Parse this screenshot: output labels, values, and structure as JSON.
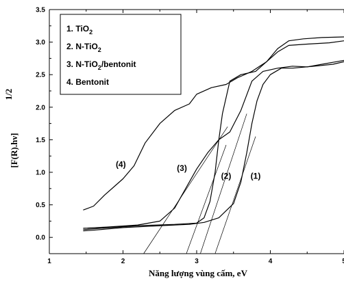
{
  "chart_data": {
    "type": "line",
    "xlabel": "Năng lượng vùng cấm, eV",
    "ylabel_main": "[F(R).hν]",
    "ylabel_exponent": "1/2",
    "xlim": [
      1,
      5
    ],
    "ylim": [
      -0.25,
      3.5
    ],
    "xticks": [
      1,
      2,
      3,
      4,
      5
    ],
    "yticks": [
      0.0,
      0.5,
      1.0,
      1.5,
      2.0,
      2.5,
      3.0,
      3.5
    ],
    "xtick_labels": [
      "1",
      "2",
      "3",
      "4",
      "5"
    ],
    "ytick_labels": [
      "0.0",
      "0.5",
      "1.0",
      "1.5",
      "2.0",
      "2.5",
      "3.0",
      "3.5"
    ],
    "legend": {
      "placement": "top-left",
      "entries": [
        {
          "num": "1.",
          "text": "TiO",
          "sub": "2",
          "rest": ""
        },
        {
          "num": "2.",
          "text": "N-TiO",
          "sub": "2",
          "rest": ""
        },
        {
          "num": "3.",
          "text": "N-TiO",
          "sub": "2",
          "rest": "/bentonit"
        },
        {
          "num": "4.",
          "text": "Bentonit",
          "sub": "",
          "rest": ""
        }
      ]
    },
    "series": [
      {
        "label": "(1)",
        "label_at": [
          3.8,
          0.9
        ],
        "points": [
          [
            1.46,
            0.1
          ],
          [
            1.6,
            0.11
          ],
          [
            2.0,
            0.15
          ],
          [
            2.5,
            0.18
          ],
          [
            2.9,
            0.2
          ],
          [
            3.1,
            0.23
          ],
          [
            3.3,
            0.3
          ],
          [
            3.5,
            0.52
          ],
          [
            3.6,
            0.85
          ],
          [
            3.68,
            1.3
          ],
          [
            3.75,
            1.75
          ],
          [
            3.82,
            2.1
          ],
          [
            3.9,
            2.35
          ],
          [
            4.0,
            2.5
          ],
          [
            4.15,
            2.6
          ],
          [
            4.3,
            2.6
          ],
          [
            4.6,
            2.63
          ],
          [
            4.85,
            2.66
          ],
          [
            5.0,
            2.7
          ]
        ]
      },
      {
        "label": "(2)",
        "label_at": [
          3.4,
          0.9
        ],
        "points": [
          [
            1.46,
            0.12
          ],
          [
            1.7,
            0.14
          ],
          [
            2.2,
            0.18
          ],
          [
            2.7,
            0.2
          ],
          [
            3.0,
            0.22
          ],
          [
            3.1,
            0.3
          ],
          [
            3.18,
            0.55
          ],
          [
            3.25,
            1.0
          ],
          [
            3.3,
            1.5
          ],
          [
            3.35,
            1.9
          ],
          [
            3.45,
            2.4
          ],
          [
            3.6,
            2.5
          ],
          [
            3.8,
            2.55
          ],
          [
            3.95,
            2.7
          ],
          [
            4.1,
            2.85
          ],
          [
            4.25,
            2.95
          ],
          [
            4.5,
            2.97
          ],
          [
            4.8,
            2.99
          ],
          [
            5.0,
            3.02
          ]
        ]
      },
      {
        "label": "(3)",
        "label_at": [
          2.8,
          1.02
        ],
        "points": [
          [
            1.46,
            0.14
          ],
          [
            1.8,
            0.16
          ],
          [
            2.2,
            0.19
          ],
          [
            2.5,
            0.25
          ],
          [
            2.7,
            0.45
          ],
          [
            2.85,
            0.75
          ],
          [
            3.0,
            1.05
          ],
          [
            3.15,
            1.3
          ],
          [
            3.3,
            1.5
          ],
          [
            3.45,
            1.62
          ],
          [
            3.6,
            1.95
          ],
          [
            3.75,
            2.4
          ],
          [
            3.9,
            2.55
          ],
          [
            4.1,
            2.6
          ],
          [
            4.3,
            2.63
          ],
          [
            4.5,
            2.62
          ],
          [
            4.7,
            2.66
          ],
          [
            4.9,
            2.7
          ],
          [
            5.0,
            2.72
          ]
        ]
      },
      {
        "label": "(4)",
        "label_at": [
          1.97,
          1.08
        ],
        "points": [
          [
            1.46,
            0.42
          ],
          [
            1.6,
            0.48
          ],
          [
            1.75,
            0.65
          ],
          [
            1.9,
            0.8
          ],
          [
            2.0,
            0.9
          ],
          [
            2.15,
            1.1
          ],
          [
            2.3,
            1.45
          ],
          [
            2.5,
            1.75
          ],
          [
            2.7,
            1.95
          ],
          [
            2.9,
            2.05
          ],
          [
            3.0,
            2.2
          ],
          [
            3.2,
            2.3
          ],
          [
            3.4,
            2.35
          ],
          [
            3.55,
            2.45
          ],
          [
            3.75,
            2.55
          ],
          [
            3.95,
            2.7
          ],
          [
            4.1,
            2.9
          ],
          [
            4.25,
            3.02
          ],
          [
            4.45,
            3.05
          ],
          [
            4.7,
            3.07
          ],
          [
            5.0,
            3.08
          ]
        ]
      }
    ],
    "tangent_lines": [
      {
        "from": [
          2.28,
          -0.25
        ],
        "to": [
          3.42,
          1.7
        ]
      },
      {
        "from": [
          2.86,
          -0.25
        ],
        "to": [
          3.4,
          1.42
        ]
      },
      {
        "from": [
          3.05,
          -0.25
        ],
        "to": [
          3.68,
          1.9
        ]
      },
      {
        "from": [
          3.25,
          -0.25
        ],
        "to": [
          3.8,
          1.55
        ]
      }
    ],
    "grid": false,
    "line_color": "#000000"
  }
}
